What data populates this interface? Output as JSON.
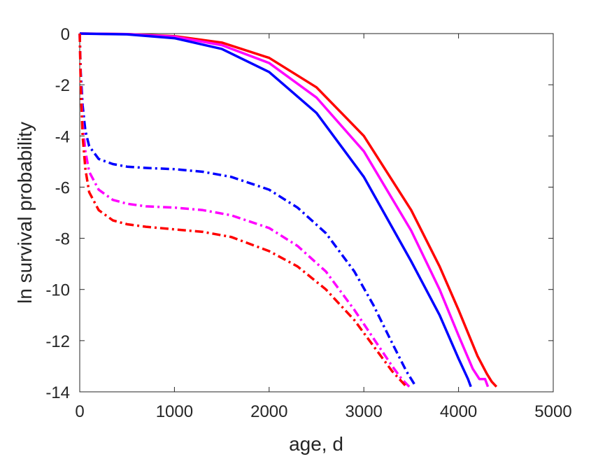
{
  "chart_data": {
    "type": "line",
    "xlabel": "age, d",
    "ylabel": "ln survival probability",
    "xlim": [
      0,
      5000
    ],
    "ylim": [
      -14,
      0
    ],
    "xticks": [
      0,
      1000,
      2000,
      3000,
      4000,
      5000
    ],
    "yticks": [
      0,
      -2,
      -4,
      -6,
      -8,
      -10,
      -12,
      -14
    ],
    "grid": false,
    "legend": "none",
    "series": [
      {
        "color": "#ff0000",
        "style": "solid",
        "x": [
          0,
          500,
          1000,
          1500,
          2000,
          2500,
          3000,
          3500,
          3800,
          4000,
          4200,
          4300,
          4350,
          4400
        ],
        "y": [
          0,
          -0.02,
          -0.1,
          -0.35,
          -0.95,
          -2.1,
          -4.0,
          -6.9,
          -9.1,
          -10.8,
          -12.6,
          -13.3,
          -13.6,
          -13.8
        ]
      },
      {
        "color": "#ff00ff",
        "style": "solid",
        "x": [
          0,
          500,
          1000,
          1500,
          2000,
          2500,
          3000,
          3500,
          3800,
          4000,
          4150,
          4220,
          4280,
          4310
        ],
        "y": [
          0,
          -0.02,
          -0.12,
          -0.45,
          -1.15,
          -2.5,
          -4.6,
          -7.7,
          -10.0,
          -11.8,
          -13.1,
          -13.5,
          -13.5,
          -13.8
        ]
      },
      {
        "color": "#0000ff",
        "style": "solid",
        "x": [
          0,
          500,
          1000,
          1500,
          2000,
          2500,
          3000,
          3500,
          3800,
          4000,
          4100,
          4130
        ],
        "y": [
          0,
          -0.03,
          -0.18,
          -0.6,
          -1.5,
          -3.1,
          -5.6,
          -8.9,
          -11.0,
          -12.7,
          -13.5,
          -13.8
        ]
      },
      {
        "color": "#0000ff",
        "style": "dashdot",
        "x": [
          0,
          10,
          30,
          60,
          100,
          200,
          350,
          500,
          700,
          1000,
          1300,
          1600,
          2000,
          2300,
          2600,
          2900,
          3100,
          3300,
          3450,
          3550
        ],
        "y": [
          0,
          -1.5,
          -2.8,
          -3.8,
          -4.4,
          -4.9,
          -5.1,
          -5.2,
          -5.25,
          -5.3,
          -5.4,
          -5.6,
          -6.1,
          -6.8,
          -7.8,
          -9.3,
          -10.6,
          -12.1,
          -13.2,
          -13.8
        ]
      },
      {
        "color": "#ff00ff",
        "style": "dashdot",
        "x": [
          0,
          10,
          30,
          60,
          100,
          200,
          350,
          500,
          700,
          1000,
          1300,
          1600,
          2000,
          2300,
          2600,
          2900,
          3100,
          3300,
          3400,
          3480
        ],
        "y": [
          0,
          -1.8,
          -3.5,
          -4.6,
          -5.4,
          -6.1,
          -6.5,
          -6.65,
          -6.75,
          -6.8,
          -6.9,
          -7.1,
          -7.6,
          -8.3,
          -9.3,
          -10.8,
          -11.9,
          -13.0,
          -13.5,
          -13.8
        ]
      },
      {
        "color": "#ff0000",
        "style": "dashdot",
        "x": [
          0,
          10,
          30,
          60,
          100,
          200,
          350,
          500,
          700,
          1000,
          1300,
          1600,
          2000,
          2300,
          2600,
          2900,
          3100,
          3300,
          3400,
          3450
        ],
        "y": [
          0,
          -2.0,
          -4.0,
          -5.3,
          -6.2,
          -6.9,
          -7.3,
          -7.45,
          -7.55,
          -7.65,
          -7.75,
          -7.95,
          -8.5,
          -9.1,
          -10.0,
          -11.2,
          -12.2,
          -13.2,
          -13.6,
          -13.8
        ]
      }
    ]
  }
}
